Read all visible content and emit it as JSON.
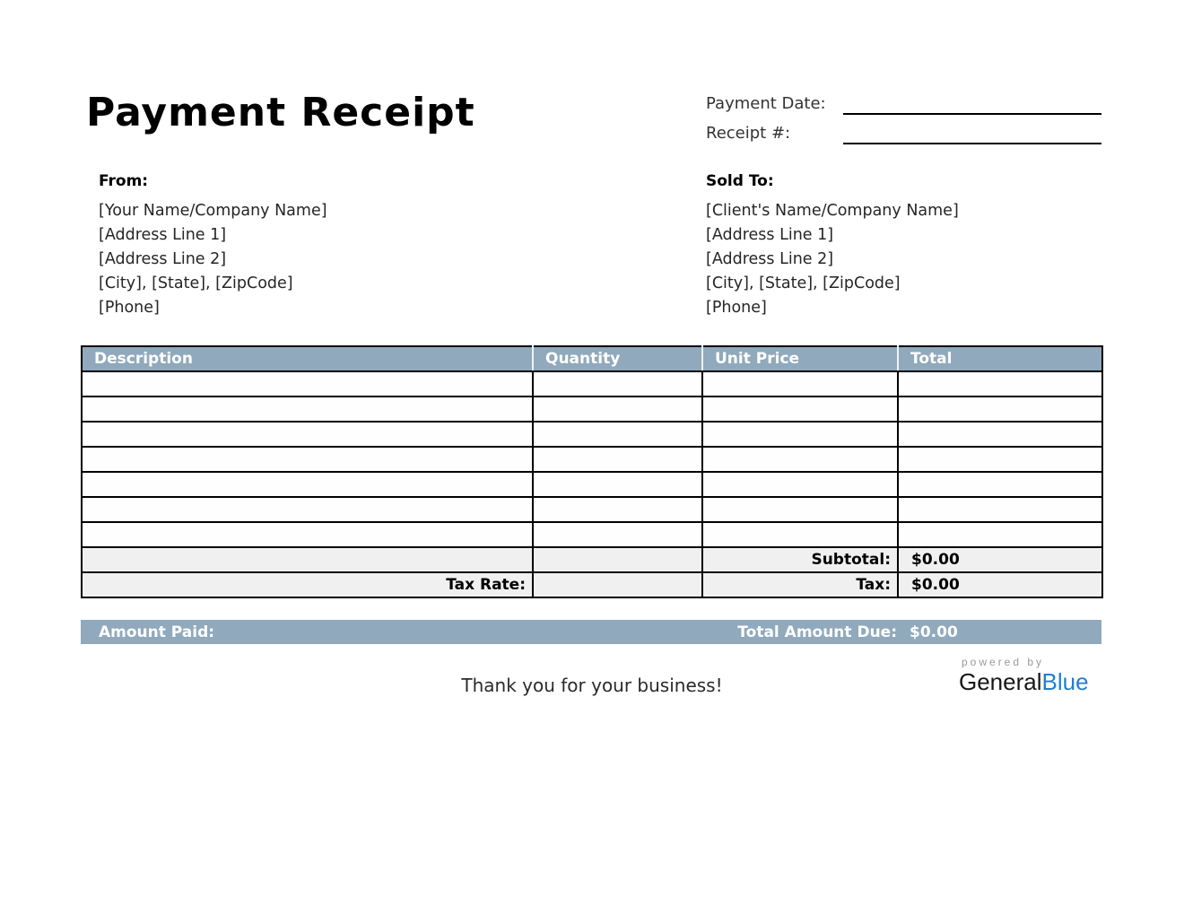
{
  "page": {
    "title": "Payment Receipt",
    "thank_you": "Thank you for your business!"
  },
  "meta": {
    "payment_date_label": "Payment Date:",
    "payment_date_value": "",
    "receipt_number_label": "Receipt #:",
    "receipt_number_value": ""
  },
  "from": {
    "label": "From:",
    "lines": [
      "[Your Name/Company Name]",
      "[Address Line 1]",
      "[Address Line 2]",
      "[City], [State], [ZipCode]",
      "[Phone]"
    ]
  },
  "sold_to": {
    "label": "Sold To:",
    "lines": [
      "[Client's Name/Company Name]",
      "[Address Line 1]",
      "[Address Line 2]",
      "[City], [State], [ZipCode]",
      "[Phone]"
    ]
  },
  "table": {
    "headers": [
      "Description",
      "Quantity",
      "Unit Price",
      "Total"
    ],
    "empty_row_count": 7,
    "subtotal_label": "Subtotal:",
    "subtotal_value": "$0.00",
    "tax_rate_label": "Tax Rate:",
    "tax_rate_value": "",
    "tax_label": "Tax:",
    "tax_value": "$0.00"
  },
  "paid_bar": {
    "amount_paid_label": "Amount Paid:",
    "amount_paid_value": "",
    "total_amount_due_label": "Total Amount Due:",
    "total_amount_due_value": "$0.00"
  },
  "footer": {
    "powered_by": "powered by",
    "brand_general": "General",
    "brand_blue": "Blue"
  },
  "colors": {
    "table_header_bg": "#90A9BC",
    "summary_row_bg": "#F0F0F0",
    "paid_bar_bg": "#90A9BC",
    "brand_blue": "#1F7FD0"
  }
}
